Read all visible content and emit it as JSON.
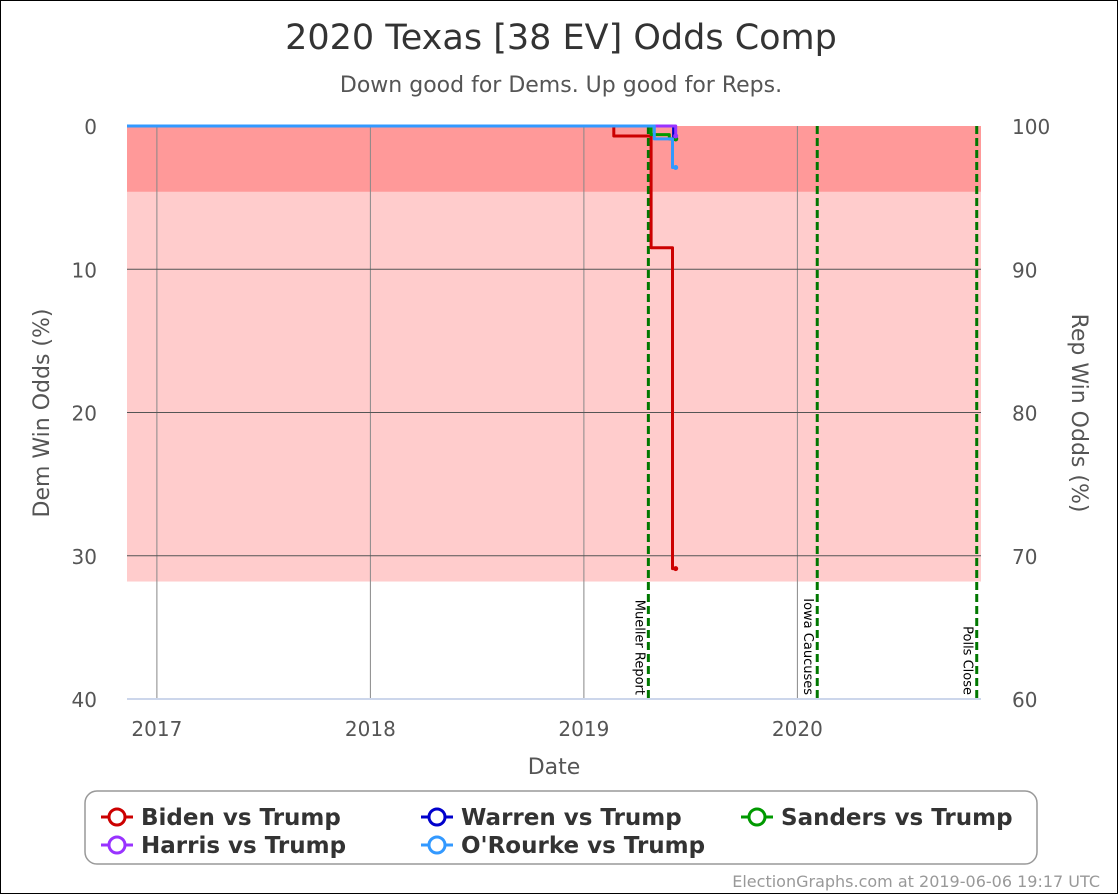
{
  "chart_data": {
    "type": "line",
    "title": "2020 Texas [38 EV] Odds Comp",
    "subtitle": "Down good for Dems. Up good for Reps.",
    "xlabel": "Date",
    "ylabel_left": "Dem Win Odds (%)",
    "ylabel_right": "Rep Win Odds (%)",
    "xlim": [
      2016.86,
      2020.86
    ],
    "ylim_left": [
      0,
      40
    ],
    "left_axis_inverted": true,
    "ylim_right": [
      60,
      100
    ],
    "x_ticks": [
      {
        "value": 2017,
        "label": "2017"
      },
      {
        "value": 2018,
        "label": "2018"
      },
      {
        "value": 2019,
        "label": "2019"
      },
      {
        "value": 2020,
        "label": "2020"
      }
    ],
    "y_ticks_left": [
      {
        "value": 0,
        "label": "0"
      },
      {
        "value": 10,
        "label": "10"
      },
      {
        "value": 20,
        "label": "20"
      },
      {
        "value": 30,
        "label": "30"
      },
      {
        "value": 40,
        "label": "40"
      }
    ],
    "y_ticks_right": [
      {
        "value": 0,
        "label": "100"
      },
      {
        "value": 10,
        "label": "90"
      },
      {
        "value": 20,
        "label": "80"
      },
      {
        "value": 30,
        "label": "70"
      },
      {
        "value": 40,
        "label": "60"
      }
    ],
    "grid": true,
    "bands": [
      {
        "from": 0,
        "to": 4.6,
        "color": "#ff9999"
      },
      {
        "from": 4.6,
        "to": 31.8,
        "color": "#ffcccc"
      }
    ],
    "events": [
      {
        "x": 2019.302,
        "label": "Mueller Report"
      },
      {
        "x": 2020.093,
        "label": "Iowa Caucuses"
      },
      {
        "x": 2020.84,
        "label": "Polls Close"
      }
    ],
    "series": [
      {
        "name": "Biden vs Trump",
        "color": "#cc0000",
        "points": [
          [
            2016.86,
            0
          ],
          [
            2019.14,
            0
          ],
          [
            2019.14,
            0.7
          ],
          [
            2019.315,
            0.7
          ],
          [
            2019.315,
            8.5
          ],
          [
            2019.415,
            8.5
          ],
          [
            2019.415,
            30.9
          ],
          [
            2019.43,
            30.9
          ]
        ]
      },
      {
        "name": "Warren vs Trump",
        "color": "#0000cc",
        "points": [
          [
            2016.86,
            0
          ],
          [
            2019.42,
            0
          ],
          [
            2019.42,
            0.9
          ],
          [
            2019.43,
            0.9
          ]
        ]
      },
      {
        "name": "Sanders vs Trump",
        "color": "#009900",
        "points": [
          [
            2016.86,
            0
          ],
          [
            2019.315,
            0
          ],
          [
            2019.315,
            0.6
          ],
          [
            2019.4,
            0.6
          ],
          [
            2019.4,
            0.9
          ],
          [
            2019.43,
            0.9
          ]
        ]
      },
      {
        "name": "Harris vs Trump",
        "color": "#9933ff",
        "points": [
          [
            2016.86,
            0
          ],
          [
            2019.43,
            0
          ],
          [
            2019.43,
            0.7
          ]
        ]
      },
      {
        "name": "O'Rourke vs Trump",
        "color": "#3399ff",
        "points": [
          [
            2016.86,
            0
          ],
          [
            2019.33,
            0
          ],
          [
            2019.33,
            0.9
          ],
          [
            2019.415,
            0.9
          ],
          [
            2019.415,
            2.9
          ],
          [
            2019.43,
            2.9
          ]
        ]
      }
    ]
  },
  "legend": {
    "items": [
      {
        "label": "Biden vs Trump",
        "color": "#cc0000"
      },
      {
        "label": "Warren vs Trump",
        "color": "#0000cc"
      },
      {
        "label": "Sanders vs Trump",
        "color": "#009900"
      },
      {
        "label": "Harris vs Trump",
        "color": "#9933ff"
      },
      {
        "label": "O'Rourke vs Trump",
        "color": "#3399ff"
      }
    ]
  },
  "credit": "ElectionGraphs.com at 2019-06-06 19:17 UTC"
}
